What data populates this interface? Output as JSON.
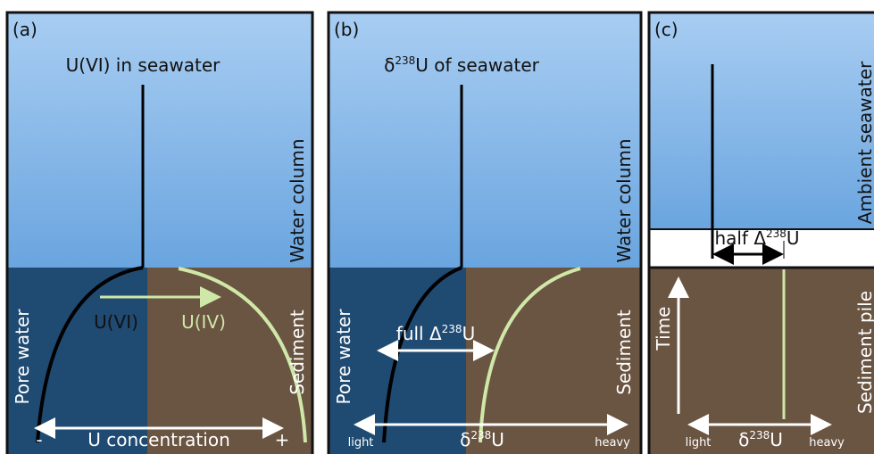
{
  "panels": [
    {
      "label": "(a)",
      "title": [
        "U(VI) in seawater"
      ],
      "side_top": "Water column",
      "pore": "Pore water",
      "uvi": "U(VI)",
      "uiv": "U(IV)",
      "side_bottom": "Sediment",
      "minus": "-",
      "axis": "U concentration",
      "plus": "+"
    },
    {
      "label": "(b)",
      "title": [
        "δ",
        "238",
        "U of seawater"
      ],
      "side_top": "Water column",
      "pore": "Pore water",
      "delta": [
        "full Δ",
        "238",
        "U"
      ],
      "side_bottom": "Sediment",
      "light": "light",
      "axis": [
        "δ",
        "238",
        "U"
      ],
      "heavy": "heavy"
    },
    {
      "label": "(c)",
      "side_top": "Ambient seawater",
      "delta": [
        "half Δ",
        "238",
        "U"
      ],
      "time": "Time",
      "side_bottom": "Sediment pile",
      "light": "light",
      "axis": [
        "δ",
        "238",
        "U"
      ],
      "heavy": "heavy"
    }
  ]
}
